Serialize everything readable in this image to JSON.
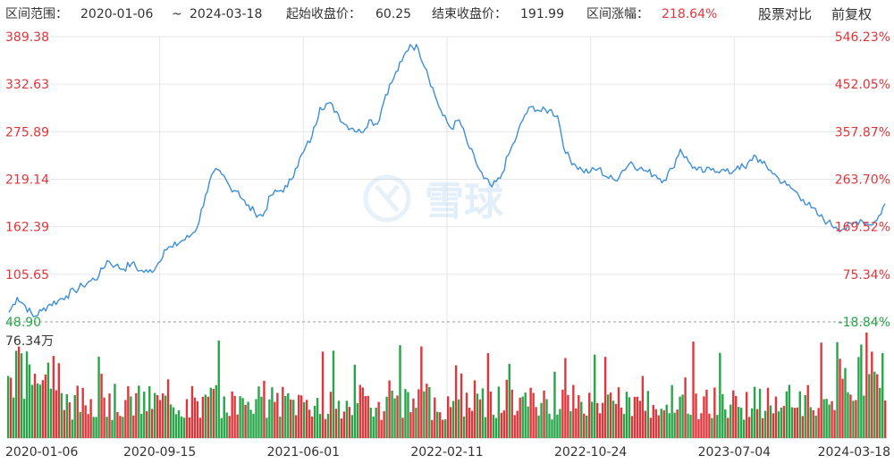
{
  "header": {
    "range_label": "区间范围：",
    "start_date": "2020-01-06",
    "tilde": "~",
    "end_date": "2024-03-18",
    "start_close_label": "起始收盘价：",
    "start_close": "60.25",
    "end_close_label": "结束收盘价：",
    "end_close": "191.99",
    "change_label": "区间涨幅：",
    "change_value": "218.64%",
    "compare_label": "股票对比",
    "adjust_label": "前复权"
  },
  "watermark": "雪球",
  "colors": {
    "line": "#3d8fd8",
    "up": "#e0363b",
    "down": "#27a548",
    "grid": "#e6e6e6",
    "axis_red": "#e0363b",
    "axis_green": "#27a548"
  },
  "chart_data": {
    "type": "line",
    "y_ticks_left": [
      "389.38",
      "332.63",
      "275.89",
      "219.14",
      "162.39",
      "105.65",
      "48.90"
    ],
    "y_ticks_right": [
      "546.23%",
      "452.05%",
      "357.87%",
      "263.70%",
      "169.52%",
      "75.34%",
      "-18.84%"
    ],
    "ylim": [
      48.9,
      389.38
    ],
    "x_ticks": [
      "2020-01-06",
      "2020-09-15",
      "2021-06-01",
      "2022-02-11",
      "2022-10-24",
      "2023-07-04",
      "2024-03-18"
    ],
    "volume_max_label": "76.34万",
    "series": [
      {
        "values": [
          60.25,
          78,
          68,
          55,
          62,
          70,
          74,
          80,
          86,
          92,
          98,
          104,
          122,
          116,
          112,
          119,
          110,
          108,
          115,
          135,
          138,
          145,
          150,
          162,
          200,
          228,
          225,
          210,
          205,
          188,
          180,
          175,
          200,
          205,
          210,
          232,
          252,
          270,
          305,
          310,
          300,
          285,
          280,
          275,
          290,
          285,
          320,
          340,
          360,
          380,
          375,
          350,
          320,
          295,
          280,
          290,
          262,
          240,
          220,
          210,
          220,
          248,
          270,
          296,
          306,
          300,
          302,
          295,
          250,
          238,
          230,
          228,
          232,
          222,
          218,
          230,
          240,
          232,
          228,
          224,
          218,
          232,
          255,
          240,
          230,
          228,
          232,
          230,
          226,
          235,
          232,
          248,
          238,
          230,
          220,
          212,
          205,
          195,
          185,
          175,
          168,
          162,
          160,
          165,
          171,
          165,
          170,
          190
        ]
      }
    ]
  }
}
